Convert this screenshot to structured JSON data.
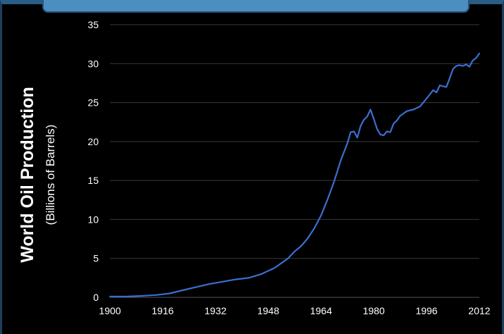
{
  "chart_data": {
    "type": "line",
    "title": "",
    "ylabel": "World Oil Production",
    "ylabel_sub": "(Billions of Barrels)",
    "xlabel": "",
    "xlim": [
      1900,
      2012
    ],
    "ylim": [
      0,
      35
    ],
    "x_ticks": [
      "1900",
      "1916",
      "1932",
      "1948",
      "1964",
      "1980",
      "1996",
      "2012"
    ],
    "y_ticks": [
      "0",
      "5",
      "10",
      "15",
      "20",
      "25",
      "30",
      "35"
    ],
    "grid": "horizontal",
    "line_color": "#3a6fd0",
    "series": [
      {
        "x": [
          1900,
          1905,
          1910,
          1914,
          1918,
          1922,
          1926,
          1930,
          1934,
          1938,
          1942,
          1946,
          1950,
          1952,
          1954,
          1956,
          1958,
          1960,
          1962,
          1964,
          1966,
          1968,
          1970,
          1972,
          1973,
          1974,
          1975,
          1976,
          1977,
          1978,
          1979,
          1980,
          1981,
          1982,
          1983,
          1984,
          1985,
          1986,
          1987,
          1988,
          1989,
          1990,
          1992,
          1994,
          1996,
          1998,
          1999,
          2000,
          2001,
          2002,
          2003,
          2004,
          2005,
          2006,
          2007,
          2008,
          2009,
          2010,
          2011,
          2012
        ],
        "y": [
          0.1,
          0.1,
          0.2,
          0.3,
          0.5,
          0.9,
          1.3,
          1.7,
          2.0,
          2.3,
          2.5,
          3.0,
          3.8,
          4.4,
          5.0,
          5.9,
          6.6,
          7.6,
          8.9,
          10.5,
          12.6,
          14.9,
          17.6,
          19.8,
          21.2,
          21.3,
          20.5,
          22.0,
          22.8,
          23.2,
          24.1,
          22.9,
          21.6,
          20.9,
          20.8,
          21.3,
          21.2,
          22.3,
          22.7,
          23.3,
          23.6,
          23.9,
          24.1,
          24.5,
          25.5,
          26.6,
          26.3,
          27.2,
          27.1,
          27.0,
          28.1,
          29.3,
          29.7,
          29.8,
          29.7,
          29.9,
          29.6,
          30.4,
          30.7,
          31.3
        ]
      }
    ]
  }
}
